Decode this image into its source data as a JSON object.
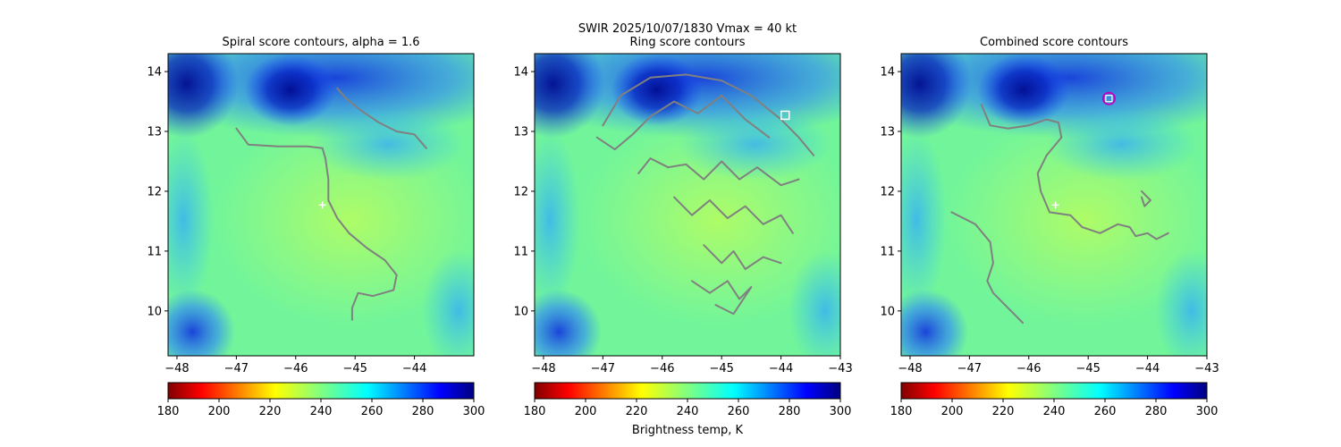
{
  "figure": {
    "suptitle_line1": "SWIR  2025/10/07/1830    Vmax = 40 kt",
    "colorbar_label": "Brightness temp, K"
  },
  "colors": {
    "contour": "#808080",
    "center_marker": "#ffffff",
    "ring_marker": "#ffffff",
    "combined_marker_outer": "#c000c0",
    "combined_marker_inner": "#ffffff"
  },
  "chart_data": [
    {
      "type": "heatmap",
      "title": "Spiral score contours, alpha =  1.6",
      "colormap": "jet",
      "xlim": [
        -48.15,
        -43.0
      ],
      "ylim": [
        9.25,
        14.3
      ],
      "xticks": [
        -48,
        -47,
        -46,
        -45,
        -44
      ],
      "xtick_labels": [
        "−48",
        "−47",
        "−46",
        "−45",
        "−44"
      ],
      "yticks": [
        10,
        11,
        12,
        13,
        14
      ],
      "ytick_labels": [
        "10",
        "11",
        "12",
        "13",
        "14"
      ],
      "colorbar": {
        "range": [
          180,
          300
        ],
        "ticks": [
          180,
          200,
          220,
          240,
          260,
          280,
          300
        ],
        "tick_labels": [
          "180",
          "200",
          "220",
          "240",
          "260",
          "280",
          "300"
        ]
      },
      "center_marker": {
        "lon": -45.55,
        "lat": 11.77
      },
      "contours": [
        [
          [
            -47.0,
            13.05
          ],
          [
            -46.8,
            12.78
          ],
          [
            -46.3,
            12.75
          ],
          [
            -45.8,
            12.75
          ],
          [
            -45.55,
            12.72
          ],
          [
            -45.5,
            12.55
          ],
          [
            -45.45,
            12.2
          ],
          [
            -45.45,
            11.85
          ],
          [
            -45.3,
            11.55
          ],
          [
            -45.1,
            11.3
          ],
          [
            -44.8,
            11.05
          ],
          [
            -44.5,
            10.85
          ],
          [
            -44.3,
            10.6
          ],
          [
            -44.35,
            10.35
          ],
          [
            -44.7,
            10.25
          ],
          [
            -44.95,
            10.3
          ],
          [
            -45.05,
            10.05
          ],
          [
            -45.05,
            9.85
          ]
        ],
        [
          [
            -45.3,
            13.72
          ],
          [
            -45.15,
            13.55
          ],
          [
            -44.9,
            13.35
          ],
          [
            -44.6,
            13.15
          ],
          [
            -44.3,
            13.0
          ],
          [
            -44.0,
            12.95
          ],
          [
            -43.8,
            12.72
          ]
        ]
      ]
    },
    {
      "type": "heatmap",
      "title": "Ring score contours",
      "colormap": "jet",
      "xlim": [
        -48.15,
        -43.0
      ],
      "ylim": [
        9.25,
        14.3
      ],
      "xticks": [
        -48,
        -47,
        -46,
        -45,
        -44,
        -43
      ],
      "xtick_labels": [
        "−48",
        "−47",
        "−46",
        "−45",
        "−44",
        "−43"
      ],
      "yticks": [
        10,
        11,
        12,
        13,
        14
      ],
      "ytick_labels": [
        "10",
        "11",
        "12",
        "13",
        "14"
      ],
      "colorbar": {
        "range": [
          180,
          300
        ],
        "ticks": [
          180,
          200,
          220,
          240,
          260,
          280,
          300
        ],
        "tick_labels": [
          "180",
          "200",
          "220",
          "240",
          "260",
          "280",
          "300"
        ]
      },
      "ring_marker": {
        "lon": -43.93,
        "lat": 13.27
      },
      "contour_region": {
        "center_lon": -45.6,
        "center_lat": 11.8,
        "radius_deg": 2.2
      },
      "contours": [
        [
          [
            -47.0,
            13.1
          ],
          [
            -46.7,
            13.6
          ],
          [
            -46.2,
            13.9
          ],
          [
            -45.6,
            13.95
          ],
          [
            -45.0,
            13.85
          ],
          [
            -44.5,
            13.6
          ],
          [
            -44.0,
            13.2
          ],
          [
            -43.7,
            12.9
          ],
          [
            -43.45,
            12.6
          ]
        ],
        [
          [
            -47.1,
            12.9
          ],
          [
            -46.8,
            12.7
          ],
          [
            -46.5,
            12.95
          ],
          [
            -46.2,
            13.25
          ],
          [
            -45.8,
            13.5
          ],
          [
            -45.4,
            13.3
          ],
          [
            -45.0,
            13.6
          ],
          [
            -44.6,
            13.2
          ],
          [
            -44.2,
            12.9
          ]
        ],
        [
          [
            -46.4,
            12.3
          ],
          [
            -46.2,
            12.55
          ],
          [
            -45.9,
            12.4
          ],
          [
            -45.6,
            12.45
          ],
          [
            -45.3,
            12.2
          ],
          [
            -45.0,
            12.5
          ],
          [
            -44.7,
            12.2
          ],
          [
            -44.4,
            12.4
          ],
          [
            -44.0,
            12.1
          ],
          [
            -43.7,
            12.2
          ]
        ],
        [
          [
            -45.8,
            11.9
          ],
          [
            -45.5,
            11.6
          ],
          [
            -45.2,
            11.85
          ],
          [
            -44.9,
            11.55
          ],
          [
            -44.6,
            11.75
          ],
          [
            -44.3,
            11.45
          ],
          [
            -44.0,
            11.6
          ],
          [
            -43.8,
            11.3
          ]
        ],
        [
          [
            -45.3,
            11.1
          ],
          [
            -45.0,
            10.8
          ],
          [
            -44.8,
            11.0
          ],
          [
            -44.6,
            10.7
          ],
          [
            -44.3,
            10.9
          ],
          [
            -44.0,
            10.8
          ]
        ],
        [
          [
            -45.5,
            10.5
          ],
          [
            -45.2,
            10.3
          ],
          [
            -44.9,
            10.5
          ],
          [
            -44.7,
            10.2
          ],
          [
            -44.5,
            10.4
          ],
          [
            -44.8,
            9.95
          ],
          [
            -45.1,
            10.1
          ]
        ]
      ]
    },
    {
      "type": "heatmap",
      "title": "Combined score contours",
      "colormap": "jet",
      "xlim": [
        -48.15,
        -43.0
      ],
      "ylim": [
        9.25,
        14.3
      ],
      "xticks": [
        -48,
        -47,
        -46,
        -45,
        -44,
        -43
      ],
      "xtick_labels": [
        "−48",
        "−47",
        "−46",
        "−45",
        "−44",
        "−43"
      ],
      "yticks": [
        10,
        11,
        12,
        13,
        14
      ],
      "ytick_labels": [
        "10",
        "11",
        "12",
        "13",
        "14"
      ],
      "colorbar": {
        "range": [
          180,
          300
        ],
        "ticks": [
          180,
          200,
          220,
          240,
          260,
          280,
          300
        ],
        "tick_labels": [
          "180",
          "200",
          "220",
          "240",
          "260",
          "280",
          "300"
        ]
      },
      "center_marker": {
        "lon": -45.55,
        "lat": 11.77
      },
      "combined_marker": {
        "lon": -44.65,
        "lat": 13.55
      },
      "contours": [
        [
          [
            -46.8,
            13.45
          ],
          [
            -46.65,
            13.1
          ],
          [
            -46.35,
            13.05
          ],
          [
            -46.0,
            13.1
          ],
          [
            -45.7,
            13.2
          ],
          [
            -45.5,
            13.15
          ],
          [
            -45.45,
            12.9
          ],
          [
            -45.7,
            12.6
          ],
          [
            -45.85,
            12.3
          ],
          [
            -45.8,
            12.0
          ],
          [
            -45.65,
            11.65
          ],
          [
            -45.3,
            11.6
          ],
          [
            -45.1,
            11.4
          ],
          [
            -44.8,
            11.3
          ],
          [
            -44.5,
            11.45
          ],
          [
            -44.3,
            11.4
          ],
          [
            -44.2,
            11.25
          ],
          [
            -44.0,
            11.3
          ],
          [
            -43.85,
            11.2
          ],
          [
            -43.65,
            11.3
          ]
        ],
        [
          [
            -44.1,
            12.0
          ],
          [
            -43.95,
            11.85
          ],
          [
            -44.05,
            11.75
          ],
          [
            -44.1,
            11.9
          ]
        ],
        [
          [
            -47.3,
            11.65
          ],
          [
            -46.9,
            11.45
          ],
          [
            -46.65,
            11.15
          ],
          [
            -46.6,
            10.8
          ],
          [
            -46.7,
            10.5
          ],
          [
            -46.6,
            10.3
          ],
          [
            -46.3,
            10.0
          ],
          [
            -46.1,
            9.8
          ]
        ]
      ]
    }
  ]
}
